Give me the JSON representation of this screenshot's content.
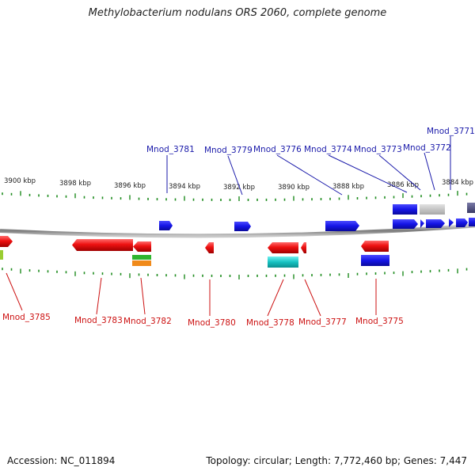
{
  "title": "Methylobacterium nodulans ORS 2060, complete genome",
  "scale_labels": [
    "3900 kbp",
    "3898 kbp",
    "3896 kbp",
    "3894 kbp",
    "3892 kbp",
    "3890 kbp",
    "3888 kbp",
    "3886 kbp",
    "3884 kbp"
  ],
  "genes_top": [
    "Mnod_3781",
    "Mnod_3779",
    "Mnod_3776",
    "Mnod_3774",
    "Mnod_3773",
    "Mnod_3772",
    "Mnod_3771"
  ],
  "genes_bottom": [
    "Mnod_3785",
    "Mnod_3783",
    "Mnod_3782",
    "Mnod_3780",
    "Mnod_3778",
    "Mnod_3777",
    "Mnod_3775"
  ],
  "colors": {
    "forward": "#1515e6",
    "reverse": "#ee1111",
    "forward_label": "#1a1aaa",
    "reverse_label": "#cc1111",
    "tick": "#1e8c1e",
    "backbone": "#8a8a8a"
  },
  "footer": {
    "accession": "Accession: NC_011894",
    "info": "Topology: circular; Length: 7,772,460 bp; Genes: 7,447"
  }
}
